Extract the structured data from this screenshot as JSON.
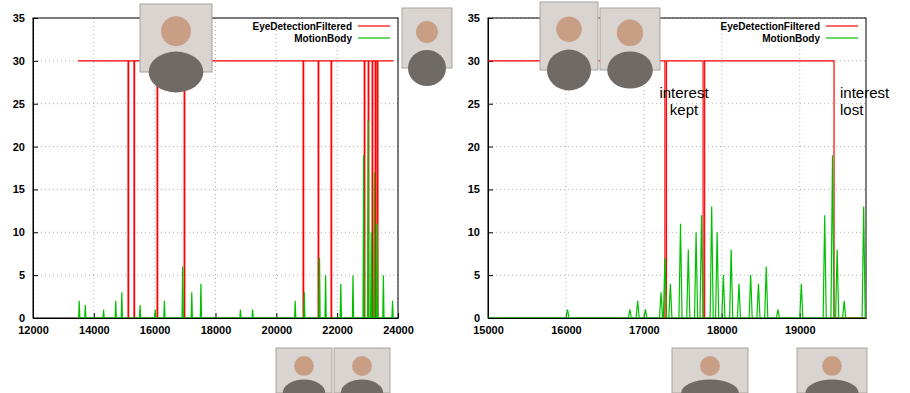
{
  "chart_data": [
    {
      "type": "line",
      "xlim": [
        12000,
        24000
      ],
      "xticks": [
        12000,
        14000,
        16000,
        18000,
        20000,
        22000,
        24000
      ],
      "ylim": [
        0,
        35
      ],
      "yticks": [
        0,
        5,
        10,
        15,
        20,
        25,
        30,
        35
      ],
      "grid": true,
      "legend": "upper right",
      "series": [
        {
          "name": "EyeDetectionFiltered",
          "color": "#ff0000",
          "line_style": "step",
          "x": [
            13480,
            15125,
            15145,
            15320,
            15340,
            16080,
            16100,
            16970,
            16990,
            20880,
            20900,
            21375,
            21395,
            21800,
            21820,
            22890,
            22910,
            23020,
            23040,
            23150,
            23170,
            23250,
            23270,
            23320,
            23340,
            23850
          ],
          "values": [
            30,
            0,
            30,
            0,
            30,
            0,
            30,
            0,
            30,
            0,
            30,
            0,
            30,
            0,
            30,
            0,
            30,
            0,
            30,
            0,
            30,
            0,
            30,
            0,
            30,
            30
          ]
        },
        {
          "name": "MotionBody",
          "color": "#00c000",
          "line_style": "solid",
          "x": [
            13500,
            13520,
            13540,
            13700,
            13720,
            13740,
            14300,
            14320,
            14340,
            14700,
            14720,
            14740,
            14900,
            14920,
            14940,
            15500,
            15520,
            15540,
            16000,
            16020,
            16040,
            16300,
            16320,
            16340,
            16900,
            16920,
            16940,
            17200,
            17220,
            17240,
            17500,
            17520,
            17540,
            18800,
            18820,
            18840,
            19200,
            19220,
            19240,
            20600,
            20620,
            20640,
            20900,
            20920,
            20940,
            21400,
            21420,
            21440,
            21600,
            21620,
            21640,
            22100,
            22120,
            22140,
            22500,
            22520,
            22540,
            22850,
            22870,
            22890,
            23000,
            23020,
            23040,
            23100,
            23120,
            23140,
            23200,
            23220,
            23240,
            23300,
            23320,
            23340,
            23500,
            23520,
            23540,
            23800,
            23820,
            23840
          ],
          "values": [
            0,
            2,
            0,
            0,
            1.5,
            0,
            0,
            1,
            0,
            0,
            2,
            0,
            0,
            3,
            0,
            0,
            1.5,
            0,
            0,
            1,
            0,
            0,
            2,
            0,
            0,
            6,
            0,
            0,
            3,
            0,
            0,
            4,
            0,
            0,
            1,
            0,
            0,
            1,
            0,
            0,
            2,
            0,
            0,
            3,
            0,
            0,
            7,
            0,
            0,
            5,
            0,
            0,
            4,
            0,
            0,
            5,
            0,
            0,
            19,
            0,
            0,
            23,
            0,
            0,
            10,
            0,
            0,
            17,
            0,
            0,
            11,
            0,
            0,
            5,
            0,
            0,
            2,
            0
          ]
        }
      ]
    },
    {
      "type": "line",
      "xlim": [
        15000,
        19850
      ],
      "xticks": [
        15000,
        16000,
        17000,
        18000,
        19000
      ],
      "ylim": [
        0,
        35
      ],
      "yticks": [
        0,
        5,
        10,
        15,
        20,
        25,
        30,
        35
      ],
      "grid": true,
      "legend": "upper right",
      "annotations": [
        "interest kept",
        "interest lost"
      ],
      "series": [
        {
          "name": "EyeDetectionFiltered",
          "color": "#ff0000",
          "line_style": "step",
          "x": [
            15000,
            17270,
            17290,
            17760,
            17780,
            19440,
            19850
          ],
          "values": [
            30,
            0,
            30,
            0,
            30,
            0,
            0
          ]
        },
        {
          "name": "MotionBody",
          "color": "#00c000",
          "line_style": "solid",
          "x": [
            15000,
            16000,
            16020,
            16040,
            16800,
            16820,
            16840,
            16900,
            16920,
            16940,
            17000,
            17020,
            17040,
            17200,
            17220,
            17240,
            17250,
            17270,
            17290,
            17320,
            17340,
            17360,
            17450,
            17470,
            17490,
            17550,
            17570,
            17590,
            17650,
            17670,
            17690,
            17720,
            17740,
            17760,
            17850,
            17870,
            17890,
            17920,
            17940,
            17960,
            18000,
            18020,
            18040,
            18100,
            18120,
            18140,
            18200,
            18220,
            18240,
            18350,
            18370,
            18390,
            18450,
            18470,
            18490,
            18550,
            18570,
            18590,
            18700,
            18720,
            18740,
            19000,
            19020,
            19040,
            19300,
            19320,
            19340,
            19400,
            19420,
            19440,
            19460,
            19480,
            19500,
            19550,
            19570,
            19590,
            19800,
            19820,
            19840,
            19850
          ],
          "values": [
            0,
            0,
            1,
            0,
            0,
            1,
            0,
            0,
            2,
            0,
            0,
            1,
            0,
            0,
            3,
            0,
            0,
            7,
            0,
            0,
            4,
            0,
            0,
            11,
            0,
            0,
            8,
            0,
            0,
            10,
            0,
            0,
            12,
            0,
            0,
            13,
            0,
            0,
            10,
            0,
            0,
            5,
            0,
            0,
            8,
            0,
            0,
            4,
            0,
            0,
            5,
            0,
            0,
            4,
            0,
            0,
            6,
            0,
            0,
            1,
            0,
            0,
            4,
            0,
            0,
            12,
            0,
            0,
            19,
            0,
            0,
            8,
            0,
            0,
            2,
            0,
            0,
            13,
            0,
            0
          ]
        }
      ]
    }
  ]
}
